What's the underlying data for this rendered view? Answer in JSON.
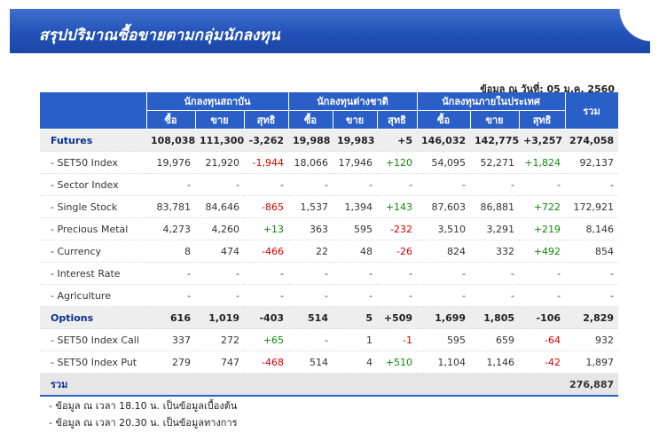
{
  "header": {
    "title": "สรุปปริมาณซื้อขายตามกลุ่มนักลงทุน"
  },
  "as_of": "ข้อมูล ณ วันที่: 05 ม.ค. 2560",
  "table": {
    "groups": [
      "นักลงทุนสถาบัน",
      "นักลงทุนต่างชาติ",
      "นักลงทุนภายในประเทศ"
    ],
    "total_header": "รวม",
    "sub_headers": [
      "ซื้อ",
      "ขาย",
      "สุทธิ"
    ],
    "rows": [
      {
        "name": "Futures",
        "main": true,
        "c": [
          "108,038",
          "111,300",
          "-3,262",
          "19,988",
          "19,983",
          "+5",
          "146,032",
          "142,775",
          "+3,257",
          "274,058"
        ]
      },
      {
        "name": "- SET50 Index",
        "main": false,
        "c": [
          "19,976",
          "21,920",
          "-1,944",
          "18,066",
          "17,946",
          "+120",
          "54,095",
          "52,271",
          "+1,824",
          "92,137"
        ]
      },
      {
        "name": "- Sector Index",
        "main": false,
        "c": [
          "-",
          "-",
          "-",
          "-",
          "-",
          "-",
          "-",
          "-",
          "-",
          "-"
        ]
      },
      {
        "name": "- Single Stock",
        "main": false,
        "c": [
          "83,781",
          "84,646",
          "-865",
          "1,537",
          "1,394",
          "+143",
          "87,603",
          "86,881",
          "+722",
          "172,921"
        ]
      },
      {
        "name": "- Precious Metal",
        "main": false,
        "c": [
          "4,273",
          "4,260",
          "+13",
          "363",
          "595",
          "-232",
          "3,510",
          "3,291",
          "+219",
          "8,146"
        ]
      },
      {
        "name": "- Currency",
        "main": false,
        "c": [
          "8",
          "474",
          "-466",
          "22",
          "48",
          "-26",
          "824",
          "332",
          "+492",
          "854"
        ]
      },
      {
        "name": "- Interest Rate",
        "main": false,
        "c": [
          "-",
          "-",
          "-",
          "-",
          "-",
          "-",
          "-",
          "-",
          "-",
          "-"
        ]
      },
      {
        "name": "- Agriculture",
        "main": false,
        "c": [
          "-",
          "-",
          "-",
          "-",
          "-",
          "-",
          "-",
          "-",
          "-",
          "-"
        ]
      },
      {
        "name": "Options",
        "main": true,
        "c": [
          "616",
          "1,019",
          "-403",
          "514",
          "5",
          "+509",
          "1,699",
          "1,805",
          "-106",
          "2,829"
        ]
      },
      {
        "name": "- SET50 Index Call",
        "main": false,
        "c": [
          "337",
          "272",
          "+65",
          "-",
          "1",
          "-1",
          "595",
          "659",
          "-64",
          "932"
        ]
      },
      {
        "name": "- SET50 Index Put",
        "main": false,
        "c": [
          "279",
          "747",
          "-468",
          "514",
          "4",
          "+510",
          "1,104",
          "1,146",
          "-42",
          "1,897"
        ]
      }
    ],
    "total_row": {
      "label": "รวม",
      "value": "276,887"
    }
  },
  "notes": [
    "- ข้อมูล ณ เวลา 18.10 น. เป็นข้อมูลเบื้องต้น",
    "- ข้อมูล ณ เวลา 20.30 น. เป็นข้อมูลทางการ"
  ],
  "colors": {
    "header_blue": "#2b5fc8",
    "positive": "#0a8a0a",
    "negative": "#d40000"
  }
}
